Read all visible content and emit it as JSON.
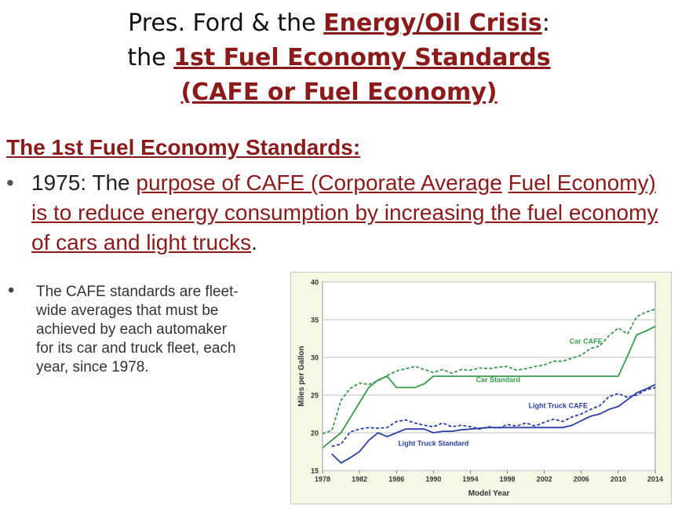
{
  "title": {
    "line1_pre": "Pres. Ford & the ",
    "line1_red": "Energy/Oil Crisis",
    "line1_post": ":",
    "line2_pre": "the ",
    "line2_red": "1st Fuel Economy Standards",
    "line3_red": "(CAFE or Fuel Economy)"
  },
  "heading": "The 1st Fuel Economy Standards:",
  "bullet_main": {
    "pre": "1975: The ",
    "red1": "purpose of CAFE (Corporate Average",
    "space": " ",
    "red2": "Fuel Economy) is to reduce energy consumption by increasing the fuel economy of cars and light trucks",
    "post": "."
  },
  "bullet_small": "The CAFE standards are fleet-wide averages that must be achieved by each automaker for its car and truck fleet, each year, since 1978.",
  "chart_data": {
    "type": "line",
    "title": "",
    "xlabel": "Model Year",
    "ylabel": "Miles per Gallon",
    "xlim": [
      1978,
      2014
    ],
    "ylim": [
      15,
      40
    ],
    "xticks": [
      1978,
      1982,
      1986,
      1990,
      1994,
      1998,
      2002,
      2006,
      2010,
      2014
    ],
    "yticks": [
      15,
      20,
      25,
      30,
      35,
      40
    ],
    "grid": true,
    "colors": {
      "car": "#3a9a4a",
      "truck": "#2a3fa8"
    },
    "series": [
      {
        "name": "Car CAFE",
        "color": "#3a9a4a",
        "dash": true,
        "x": [
          1978,
          1979,
          1980,
          1981,
          1982,
          1983,
          1984,
          1985,
          1986,
          1987,
          1988,
          1989,
          1990,
          1991,
          1992,
          1993,
          1994,
          1995,
          1996,
          1997,
          1998,
          1999,
          2000,
          2001,
          2002,
          2003,
          2004,
          2005,
          2006,
          2007,
          2008,
          2009,
          2010,
          2011,
          2012,
          2013,
          2014
        ],
        "y": [
          19.9,
          20.3,
          24.3,
          25.9,
          26.6,
          26.4,
          26.9,
          27.6,
          28.2,
          28.5,
          28.8,
          28.4,
          28.0,
          28.4,
          27.9,
          28.4,
          28.3,
          28.6,
          28.5,
          28.7,
          28.8,
          28.3,
          28.5,
          28.8,
          29.0,
          29.5,
          29.5,
          29.9,
          30.3,
          31.2,
          31.5,
          32.9,
          33.9,
          33.1,
          35.4,
          36.0,
          36.4
        ]
      },
      {
        "name": "Car Standard",
        "color": "#3a9a4a",
        "dash": false,
        "x": [
          1978,
          1979,
          1980,
          1981,
          1982,
          1983,
          1984,
          1985,
          1986,
          1987,
          1988,
          1989,
          1990,
          2010,
          2011,
          2012,
          2013,
          2014
        ],
        "y": [
          18.0,
          19.0,
          20.0,
          22.0,
          24.0,
          26.0,
          27.0,
          27.5,
          26.0,
          26.0,
          26.0,
          26.5,
          27.5,
          27.5,
          30.2,
          33.0,
          33.5,
          34.1
        ]
      },
      {
        "name": "Light Truck CAFE",
        "color": "#2a3fa8",
        "dash": true,
        "x": [
          1979,
          1980,
          1981,
          1982,
          1983,
          1984,
          1985,
          1986,
          1987,
          1988,
          1989,
          1990,
          1991,
          1992,
          1993,
          1994,
          1995,
          1996,
          1997,
          1998,
          1999,
          2000,
          2001,
          2002,
          2003,
          2004,
          2005,
          2006,
          2007,
          2008,
          2009,
          2010,
          2011,
          2012,
          2013,
          2014
        ],
        "y": [
          18.2,
          18.5,
          20.1,
          20.5,
          20.7,
          20.6,
          20.7,
          21.5,
          21.7,
          21.3,
          21.0,
          20.8,
          21.3,
          20.8,
          21.0,
          20.8,
          20.5,
          20.8,
          20.6,
          21.1,
          20.9,
          21.3,
          20.9,
          21.4,
          21.8,
          21.5,
          22.1,
          22.5,
          23.1,
          23.6,
          24.8,
          25.2,
          24.7,
          25.0,
          25.7,
          26.0
        ]
      },
      {
        "name": "Light Truck Standard",
        "color": "#2a3fa8",
        "dash": false,
        "x": [
          1979,
          1980,
          1981,
          1982,
          1983,
          1984,
          1985,
          1986,
          1987,
          1988,
          1989,
          1990,
          1991,
          1992,
          1993,
          1994,
          1995,
          1996,
          1997,
          1998,
          1999,
          2000,
          2001,
          2002,
          2003,
          2004,
          2005,
          2006,
          2007,
          2008,
          2009,
          2010,
          2011,
          2012,
          2013,
          2014
        ],
        "y": [
          17.2,
          16.0,
          16.7,
          17.5,
          19.0,
          20.0,
          19.5,
          20.0,
          20.5,
          20.5,
          20.5,
          20.0,
          20.2,
          20.2,
          20.4,
          20.5,
          20.6,
          20.7,
          20.7,
          20.7,
          20.7,
          20.7,
          20.7,
          20.7,
          20.7,
          20.7,
          21.0,
          21.6,
          22.2,
          22.5,
          23.1,
          23.5,
          24.4,
          25.3,
          25.8,
          26.4
        ]
      }
    ],
    "annotations": [
      {
        "text": "Car CAFE",
        "x": 2006.5,
        "y": 31.8,
        "color": "#3a9a4a"
      },
      {
        "text": "Car Standard",
        "x": 1997,
        "y": 26.7,
        "color": "#3a9a4a"
      },
      {
        "text": "Light Truck CAFE",
        "x": 2003.5,
        "y": 23.3,
        "color": "#2a3fa8"
      },
      {
        "text": "Light Truck Standard",
        "x": 1990,
        "y": 18.3,
        "color": "#2a3fa8"
      }
    ]
  }
}
